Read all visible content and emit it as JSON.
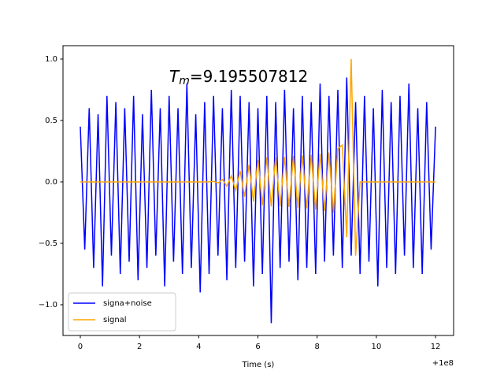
{
  "chart_data": {
    "type": "line",
    "xlabel": "Time (s)",
    "x_offset_label": "+1e8",
    "annotation": {
      "symbol": "T",
      "subscript": "m",
      "text": "=9.195507812"
    },
    "x": [
      0,
      0.15,
      0.3,
      0.45,
      0.6,
      0.75,
      0.9,
      1.05,
      1.2,
      1.35,
      1.5,
      1.65,
      1.8,
      1.95,
      2.1,
      2.25,
      2.4,
      2.55,
      2.7,
      2.85,
      3,
      3.15,
      3.3,
      3.45,
      3.6,
      3.75,
      3.9,
      4.05,
      4.2,
      4.35,
      4.5,
      4.65,
      4.8,
      4.95,
      5.1,
      5.25,
      5.4,
      5.55,
      5.7,
      5.85,
      6,
      6.15,
      6.3,
      6.45,
      6.6,
      6.75,
      6.9,
      7.05,
      7.2,
      7.35,
      7.5,
      7.65,
      7.8,
      7.95,
      8.1,
      8.25,
      8.4,
      8.55,
      8.7,
      8.85,
      9,
      9.15,
      9.3,
      9.45,
      9.6,
      9.75,
      9.9,
      10.05,
      10.2,
      10.35,
      10.5,
      10.65,
      10.8,
      10.95,
      11.1,
      11.25,
      11.4,
      11.55,
      11.7,
      11.85,
      12
    ],
    "series": [
      {
        "name": "signa+noise",
        "color": "#0000ff",
        "values": [
          0.45,
          -0.55,
          0.6,
          -0.7,
          0.55,
          -0.85,
          0.7,
          -0.6,
          0.65,
          -0.75,
          0.6,
          -0.65,
          0.7,
          -0.8,
          0.55,
          -0.7,
          0.75,
          -0.6,
          0.6,
          -0.85,
          0.7,
          -0.65,
          0.6,
          -0.75,
          0.8,
          -0.7,
          0.55,
          -0.9,
          0.65,
          -0.75,
          0.7,
          -0.6,
          0.6,
          -0.8,
          0.75,
          -0.7,
          0.7,
          -0.65,
          0.65,
          -0.85,
          0.6,
          -0.75,
          0.7,
          -1.15,
          0.65,
          -0.7,
          0.75,
          -0.65,
          0.6,
          -0.8,
          0.7,
          -0.7,
          0.65,
          -0.75,
          0.8,
          -0.65,
          0.7,
          -0.6,
          0.75,
          -0.7,
          0.85,
          -0.6,
          0.65,
          -0.75,
          0.7,
          -0.65,
          0.6,
          -0.85,
          0.75,
          -0.7,
          0.65,
          -0.75,
          0.7,
          -0.6,
          0.8,
          -0.7,
          0.6,
          -0.75,
          0.65,
          -0.55,
          0.45
        ]
      },
      {
        "name": "signal",
        "color": "#ffa500",
        "values": [
          0,
          0,
          0,
          0,
          0,
          0,
          0,
          0,
          0,
          0,
          0,
          0,
          0,
          0,
          0,
          0,
          0,
          0,
          0,
          0,
          0,
          0,
          0,
          0,
          0,
          0,
          0,
          0,
          0,
          0,
          0.005,
          -0.01,
          0.02,
          -0.035,
          0.05,
          -0.07,
          0.09,
          -0.12,
          0.14,
          -0.16,
          0.18,
          -0.19,
          0.2,
          -0.2,
          0.2,
          -0.2,
          0.205,
          -0.205,
          0.21,
          -0.21,
          0.215,
          -0.215,
          0.22,
          -0.225,
          0.23,
          -0.235,
          0.24,
          -0.25,
          0.27,
          0.3,
          -0.45,
          1.0,
          -0.6,
          0,
          0,
          0,
          0,
          0,
          0,
          0,
          0,
          0,
          0,
          0,
          0,
          0,
          0,
          0,
          0,
          0,
          0
        ]
      }
    ],
    "xlim": [
      -0.585,
      12.61
    ],
    "ylim": [
      -1.25,
      1.109
    ],
    "xticks": [
      0,
      2,
      4,
      6,
      8,
      10,
      12
    ],
    "yticks": [
      {
        "value": -1.0,
        "label": "−1.0"
      },
      {
        "value": -0.5,
        "label": "−0.5"
      },
      {
        "value": 0.0,
        "label": "0.0"
      },
      {
        "value": 0.5,
        "label": "0.5"
      },
      {
        "value": 1.0,
        "label": "1.0"
      }
    ],
    "legend": "lower left"
  }
}
